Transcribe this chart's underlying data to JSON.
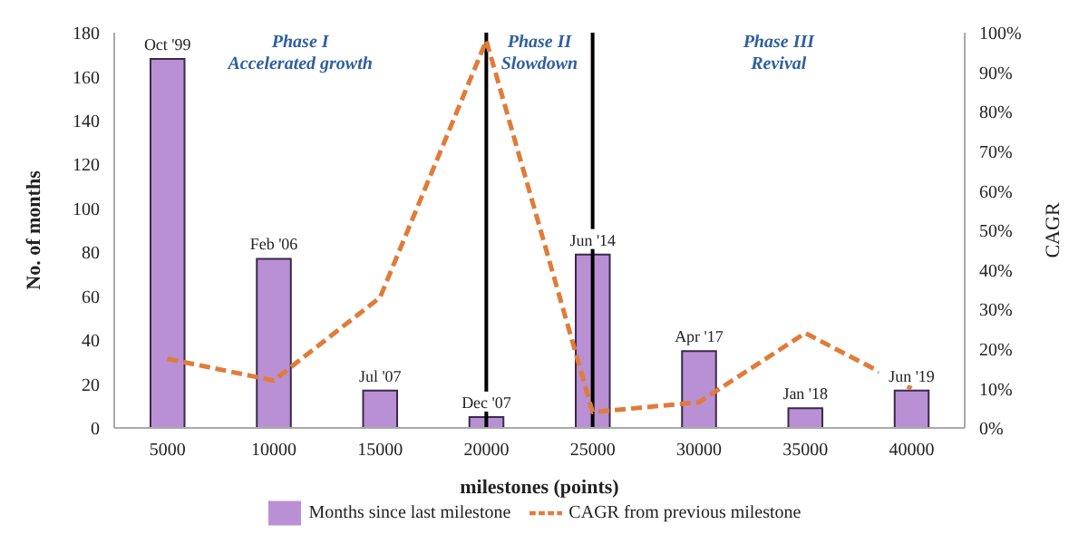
{
  "chart_data": {
    "type": "bar",
    "xlabel": "milestones (points)",
    "ylabel": "No. of months",
    "y2label": "CAGR",
    "categories": [
      "5000",
      "10000",
      "15000",
      "20000",
      "25000",
      "30000",
      "35000",
      "40000"
    ],
    "series": [
      {
        "name": "Months since last milestone",
        "color": "#b990d4",
        "values": [
          168,
          77,
          17,
          5,
          79,
          35,
          9,
          17
        ],
        "value_labels": [
          "Oct '99",
          "Feb '06",
          "Jul '07",
          "Dec '07",
          "Jun '14",
          "Apr '17",
          "Jan '18",
          "Jun '19"
        ]
      },
      {
        "name": "CAGR from previous milestone",
        "type": "line",
        "axis": "y2",
        "color": "#e07b39",
        "line_style": "dashed",
        "marker": "none",
        "values": [
          17.5,
          12,
          33,
          98,
          4,
          6.5,
          24,
          10
        ]
      }
    ],
    "ylim": [
      0,
      180
    ],
    "yticks": [
      0,
      20,
      40,
      60,
      80,
      100,
      120,
      140,
      160,
      180
    ],
    "y2lim": [
      0,
      100
    ],
    "y2ticks": [
      {
        "value": 0,
        "label": "0%"
      },
      {
        "value": 10,
        "label": "10%"
      },
      {
        "value": 20,
        "label": "20%"
      },
      {
        "value": 30,
        "label": "30%"
      },
      {
        "value": 40,
        "label": "40%"
      },
      {
        "value": 50,
        "label": "50%"
      },
      {
        "value": 60,
        "label": "60%"
      },
      {
        "value": 70,
        "label": "70%"
      },
      {
        "value": 80,
        "label": "80%"
      },
      {
        "value": 90,
        "label": "90%"
      },
      {
        "value": 100,
        "label": "100%"
      }
    ],
    "ref_lines": [
      {
        "axis": "x",
        "value": "20000",
        "color": "#000000"
      },
      {
        "axis": "x",
        "value": "25000",
        "color": "#000000"
      }
    ],
    "annotations": [
      "Phase I\nAccelerated growth",
      "Phase II\nSlowdown",
      "Phase III\nRevival"
    ],
    "grid": false,
    "legend": "bottom"
  }
}
